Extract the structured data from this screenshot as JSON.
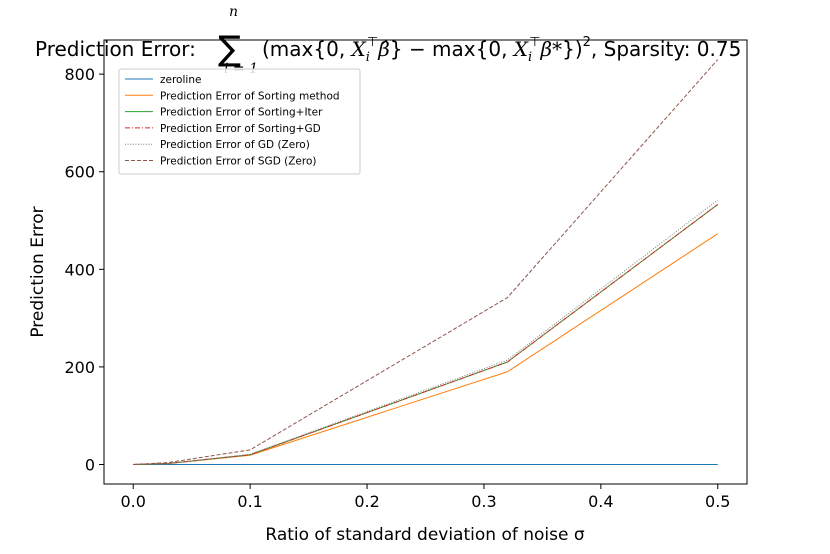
{
  "chart_data": {
    "type": "line",
    "title": {
      "prefix": "Prediction Error:",
      "formula_parts": [
        "(max{0, ",
        "X",
        "i",
        "⊤",
        "β̂",
        "} − max{0, ",
        "X",
        "i",
        "⊤",
        "β*",
        "})",
        "2"
      ],
      "sum_upper": "n",
      "sum_lower": "i = 1",
      "suffix": ", Sparsity: 0.75"
    },
    "xlabel": "Ratio of standard deviation of noise σ",
    "ylabel": "Prediction Error",
    "xlim": [
      -0.025,
      0.525
    ],
    "ylim": [
      -40,
      870
    ],
    "xticks": [
      0.0,
      0.1,
      0.2,
      0.3,
      0.4,
      0.5
    ],
    "xtick_labels": [
      "0.0",
      "0.1",
      "0.2",
      "0.3",
      "0.4",
      "0.5"
    ],
    "yticks": [
      0,
      200,
      400,
      600,
      800
    ],
    "ytick_labels": [
      "0",
      "200",
      "400",
      "600",
      "800"
    ],
    "x": [
      0.0,
      0.03,
      0.1,
      0.32,
      0.5
    ],
    "grid": false,
    "legend_position": "upper-left",
    "series": [
      {
        "name": "zeroline",
        "values": [
          0,
          0,
          0,
          0,
          0
        ],
        "color": "#1f77b4",
        "dash": "solid"
      },
      {
        "name": "Prediction Error of Sorting method",
        "values": [
          0,
          2,
          19,
          190,
          473
        ],
        "color": "#ff7f0e",
        "dash": "solid"
      },
      {
        "name": "Prediction Error of Sorting+Iter",
        "values": [
          0,
          2,
          20,
          210,
          533
        ],
        "color": "#2ca02c",
        "dash": "solid"
      },
      {
        "name": "Prediction Error of Sorting+GD",
        "values": [
          0,
          2,
          20,
          210,
          533
        ],
        "color": "#d62728",
        "dash": "dashdot"
      },
      {
        "name": "Prediction Error of GD (Zero)",
        "values": [
          0,
          2,
          21,
          214,
          542
        ],
        "color": "#7f7f7f",
        "dash": "dotted"
      },
      {
        "name": "Prediction Error of SGD (Zero)",
        "values": [
          0,
          4,
          30,
          342,
          830
        ],
        "color": "#8c564b",
        "dash": "dashed"
      }
    ]
  }
}
